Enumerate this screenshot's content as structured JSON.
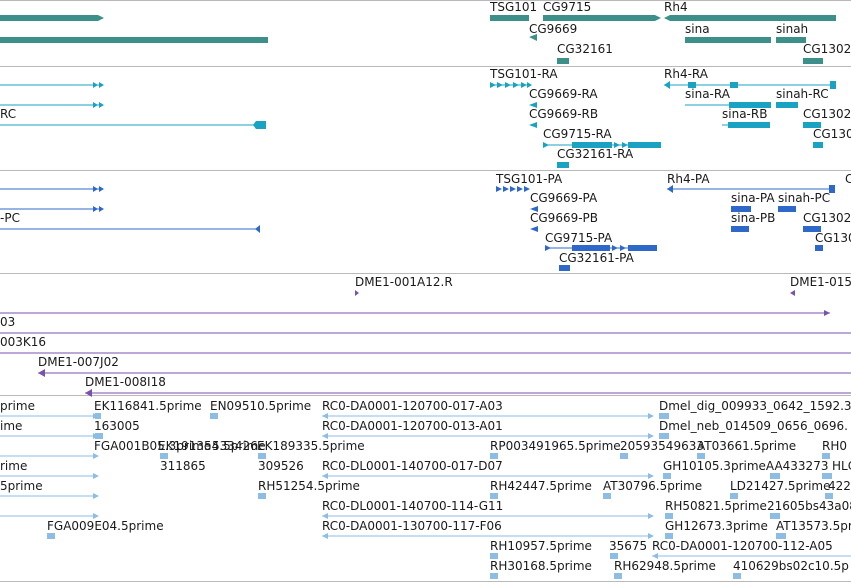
{
  "colors": {
    "gene": "#3d9089",
    "transcript": "#1aa2c3",
    "protein": "#2e68c8",
    "clone": "#7a52ad",
    "est": "#8ebde3",
    "separator": "#b9b9b9",
    "text": "#1a1a1a"
  },
  "tracks": [
    {
      "name": "genes",
      "color": "gene",
      "labels": [
        "TSG101",
        "CG9715",
        "Rh4",
        "CG9669",
        "sina",
        "sinah",
        "CG32161",
        "CG1302"
      ]
    },
    {
      "name": "transcripts",
      "color": "transcript",
      "labels": [
        "TSG101-RA",
        "Rh4-RA",
        "RC",
        "CG9669-RA",
        "sina-RA",
        "sinah-RC",
        "CG9669-RB",
        "sina-RB",
        "CG1302",
        "CG9715-RA",
        "CG130",
        "CG32161-RA"
      ]
    },
    {
      "name": "proteins",
      "color": "protein",
      "labels": [
        "TSG101-PA",
        "Rh4-PA",
        "C",
        "CG9669-PA",
        "sina-PA",
        "sinah-PC",
        "-PC",
        "CG9669-PB",
        "sina-PB",
        "CG1302",
        "CG9715-PA",
        "CG130",
        "CG32161-PA"
      ]
    },
    {
      "name": "clones",
      "color": "clone",
      "labels": [
        "DME1-001A12.R",
        "DME1-015",
        "03",
        "003K16",
        "DME1-007J02",
        "DME1-008I18"
      ]
    },
    {
      "name": "ests",
      "color": "est",
      "labels": [
        "prime",
        "EK116841.5prime",
        "EN09510.5prime",
        "RC0-DA0001-120700-017-A03",
        "Dmel_dig_009933_0642_1592.3",
        "ime",
        "163005",
        "RC0-DA0001-120700-013-A01",
        "Dmel_neb_014509_0656_0696.",
        "FGA001B05.3prime",
        "EK191354.5prime",
        "533426",
        "EK189335.5prime",
        "RP003491965.5prime",
        "20593549633",
        "AT03661.5prime",
        "RH0",
        "rime",
        "311865",
        "309526",
        "RC0-DL0001-140700-017-D07",
        "GH10105.3primeAA433273",
        "HLC",
        "5prime",
        "RH51254.5prime",
        "RH42447.5prime",
        "AT30796.5prime",
        "LD21427.5prime",
        "422",
        "RC0-DL0001-140700-114-G11",
        "RH50821.5prime21605bs43a08",
        "FGA009E04.5prime",
        "RC0-DA0001-130700-117-F06",
        "GH12673.3prime",
        "AT13573.5prime",
        "RH10957.5prime",
        "35675",
        "RC0-DA0001-120700-112-A05",
        "RH30168.5prime",
        "RH62948.5prime",
        "410629bs02c10.5p"
      ]
    }
  ]
}
